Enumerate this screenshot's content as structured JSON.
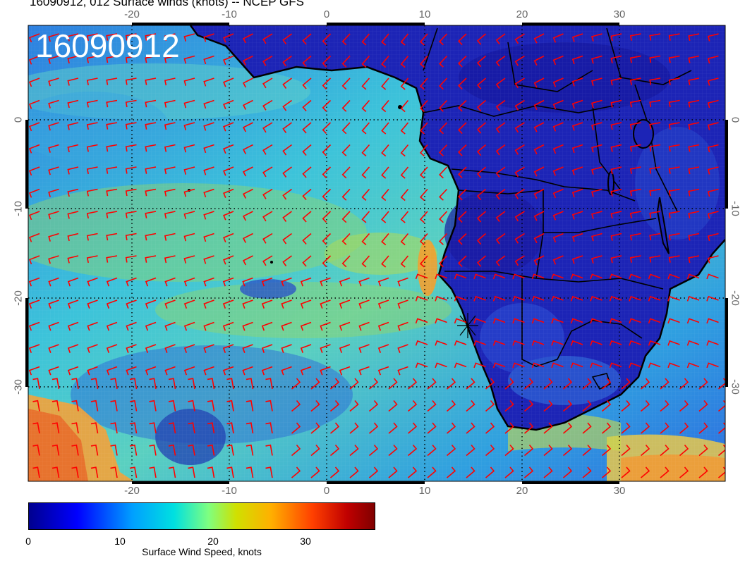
{
  "title": "16090912, 012 Surface winds (knots) -- NCEP GFS",
  "stamp": "16090912",
  "map": {
    "lon_range": [
      -30,
      41
    ],
    "lat_range": [
      -39,
      10
    ],
    "lon_ticks": [
      "-20",
      "-10",
      "0",
      "10",
      "20",
      "30"
    ],
    "lat_ticks": [
      "0",
      "-10",
      "-20",
      "-30"
    ],
    "gridlines": "dotted",
    "wind_barb_color": "#ff0000",
    "coastline_color": "#000000",
    "land_color": "#1a22b8",
    "ocean_color": "#33b8d8"
  },
  "colorbar": {
    "label": "Surface Wind Speed, knots",
    "ticks": [
      "0",
      "10",
      "20",
      "30"
    ],
    "range": [
      0,
      38
    ],
    "colormap": "jet"
  }
}
